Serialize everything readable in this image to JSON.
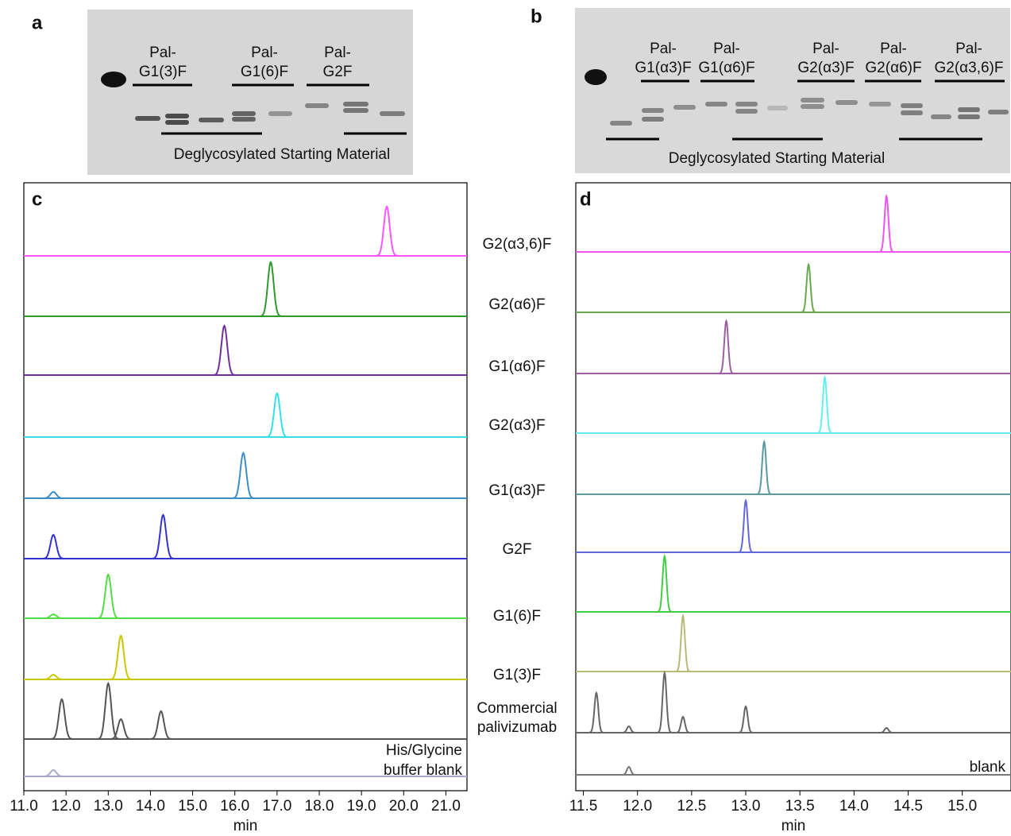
{
  "panel_letters": [
    "a",
    "b",
    "c",
    "d"
  ],
  "gel_a": {
    "labels": [
      [
        "Pal-",
        "G1(3)F"
      ],
      [
        "Pal-",
        "G1(6)F"
      ],
      [
        "Pal-",
        "G2F"
      ]
    ],
    "footer": "Deglycosylated Starting Material"
  },
  "gel_b": {
    "labels": [
      [
        "Pal-",
        "G1(α3)F"
      ],
      [
        "Pal-",
        "G1(α6)F"
      ],
      [
        "Pal-",
        "G2(α3)F"
      ],
      [
        "Pal-",
        "G2(α6)F"
      ],
      [
        "Pal-",
        "G2(α3,6)F"
      ]
    ],
    "footer": "Deglycosylated Starting Material"
  },
  "trace_labels": [
    {
      "text": "G2(α3,6)F",
      "color": "#ff33ff"
    },
    {
      "text": "G2(α6)F",
      "color": "#5a9a3a"
    },
    {
      "text": "G1(α6)F",
      "color": "#7a3ab0"
    },
    {
      "text": "G2(α3)F",
      "color": "#33cccc"
    },
    {
      "text": "G1(α3)F",
      "color": "#3a80c0"
    },
    {
      "text": "G2F",
      "color": "#3333cc"
    },
    {
      "text": "G1(6)F",
      "color": "#33bb55"
    },
    {
      "text": "G1(3)F",
      "color": "#c09020"
    },
    {
      "text": [
        "Commercial",
        "palivizumab"
      ],
      "color": "#111111"
    }
  ],
  "chart_data": [
    {
      "type": "chromatogram",
      "xlabel": "min",
      "xlim": [
        11.0,
        21.5
      ],
      "xticks": [
        {
          "value": 11,
          "label": "11.0"
        },
        {
          "value": 12,
          "label": "12.0"
        },
        {
          "value": 13,
          "label": "13.0"
        },
        {
          "value": 14,
          "label": "14.0"
        },
        {
          "value": 15,
          "label": "15.0"
        },
        {
          "value": 16,
          "label": "16.0"
        },
        {
          "value": 17,
          "label": "17.0"
        },
        {
          "value": 18,
          "label": "18.0"
        },
        {
          "value": 19,
          "label": "19.0"
        },
        {
          "value": 20,
          "label": "20.0"
        },
        {
          "value": 21,
          "label": "21.0"
        }
      ],
      "annotation": [
        "His/Glycine",
        "buffer blank"
      ],
      "series": [
        {
          "color": "#ff55ff",
          "x": [
            19.6
          ],
          "values": [
            62
          ]
        },
        {
          "color": "#2e9a2e",
          "x": [
            16.85
          ],
          "values": [
            68
          ]
        },
        {
          "color": "#7030a0",
          "x": [
            15.75
          ],
          "values": [
            62
          ]
        },
        {
          "color": "#33e0e8",
          "x": [
            17.0
          ],
          "values": [
            55
          ]
        },
        {
          "color": "#3b8fc6",
          "x": [
            11.7,
            16.2
          ],
          "values": [
            8,
            57
          ]
        },
        {
          "color": "#3333cc",
          "x": [
            11.7,
            14.3
          ],
          "values": [
            30,
            55
          ]
        },
        {
          "color": "#55dd44",
          "x": [
            11.7,
            13.0
          ],
          "values": [
            5,
            55
          ]
        },
        {
          "color": "#c8c800",
          "x": [
            11.7,
            13.3
          ],
          "values": [
            6,
            55
          ]
        },
        {
          "color": "#555555",
          "x": [
            11.9,
            13.0,
            13.3,
            14.25
          ],
          "values": [
            50,
            70,
            25,
            35
          ]
        },
        {
          "color": "#aaaacc",
          "x": [
            11.7
          ],
          "values": [
            8
          ]
        }
      ]
    },
    {
      "type": "chromatogram",
      "xlabel": "min",
      "xlim": [
        11.43,
        15.45
      ],
      "xticks": [
        11.5,
        {
          "value": 12,
          "label": "12.0"
        },
        12.5,
        {
          "value": 13,
          "label": "13.0"
        },
        13.5,
        {
          "value": 14,
          "label": "14.0"
        },
        14.5,
        {
          "value": 15,
          "label": "15.0"
        }
      ],
      "annotation": [
        "blank"
      ],
      "series": [
        {
          "color": "#ee55ee",
          "x": [
            14.3
          ],
          "values": [
            70
          ]
        },
        {
          "color": "#6aa84f",
          "x": [
            13.58
          ],
          "values": [
            60
          ]
        },
        {
          "color": "#9e5fa0",
          "x": [
            12.82
          ],
          "values": [
            66
          ]
        },
        {
          "color": "#66eeee",
          "x": [
            13.73
          ],
          "values": [
            70
          ]
        },
        {
          "color": "#5a9aa0",
          "x": [
            13.17
          ],
          "values": [
            66
          ]
        },
        {
          "color": "#6666dd",
          "x": [
            13.0
          ],
          "values": [
            65
          ]
        },
        {
          "color": "#44cc44",
          "x": [
            12.25
          ],
          "values": [
            70
          ]
        },
        {
          "color": "#b8bb77",
          "x": [
            12.42
          ],
          "values": [
            70
          ]
        },
        {
          "color": "#666666",
          "x": [
            11.62,
            11.92,
            12.25,
            12.42,
            13.0,
            14.3
          ],
          "values": [
            50,
            8,
            75,
            20,
            33,
            6
          ]
        },
        {
          "color": "#777777",
          "x": [
            11.92
          ],
          "values": [
            10
          ]
        }
      ]
    }
  ]
}
